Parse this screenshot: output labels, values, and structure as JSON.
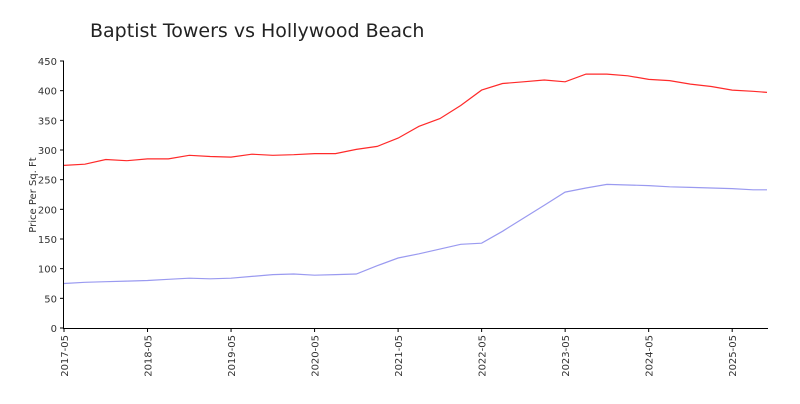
{
  "chart_data": {
    "type": "line",
    "title": "Baptist Towers vs Hollywood Beach",
    "ylabel": "Price Per Sq. Ft",
    "x": [
      "2017-05",
      "2017-08",
      "2017-11",
      "2018-02",
      "2018-05",
      "2018-08",
      "2018-11",
      "2019-02",
      "2019-05",
      "2019-08",
      "2019-11",
      "2020-02",
      "2020-05",
      "2020-08",
      "2020-11",
      "2021-02",
      "2021-05",
      "2021-08",
      "2021-11",
      "2022-02",
      "2022-05",
      "2022-08",
      "2022-11",
      "2023-02",
      "2023-05",
      "2023-08",
      "2023-11",
      "2024-02",
      "2024-05",
      "2024-08",
      "2024-11",
      "2025-02",
      "2025-05",
      "2025-08",
      "2025-10"
    ],
    "series": [
      {
        "color": "#ff2a2a",
        "values": [
          274,
          276,
          284,
          282,
          285,
          285,
          291,
          289,
          288,
          293,
          291,
          292,
          294,
          294,
          301,
          306,
          320,
          340,
          353,
          375,
          401,
          412,
          415,
          418,
          415,
          428,
          428,
          425,
          419,
          417,
          411,
          407,
          401,
          399,
          397
        ]
      },
      {
        "color": "#9a9af0",
        "values": [
          75,
          77,
          78,
          79,
          80,
          82,
          84,
          83,
          84,
          87,
          90,
          91,
          89,
          90,
          91,
          105,
          118,
          125,
          133,
          141,
          143,
          163,
          185,
          207,
          229,
          236,
          242,
          241,
          240,
          238,
          237,
          236,
          235,
          233,
          233
        ]
      }
    ],
    "xlim": [
      "2017-05",
      "2025-10"
    ],
    "xticks": [
      "2017-05",
      "2018-05",
      "2019-05",
      "2020-05",
      "2021-05",
      "2022-05",
      "2023-05",
      "2024-05",
      "2025-05"
    ],
    "ylim": [
      0,
      450
    ],
    "yticks": [
      0,
      50,
      100,
      150,
      200,
      250,
      300,
      350,
      400,
      450
    ]
  }
}
